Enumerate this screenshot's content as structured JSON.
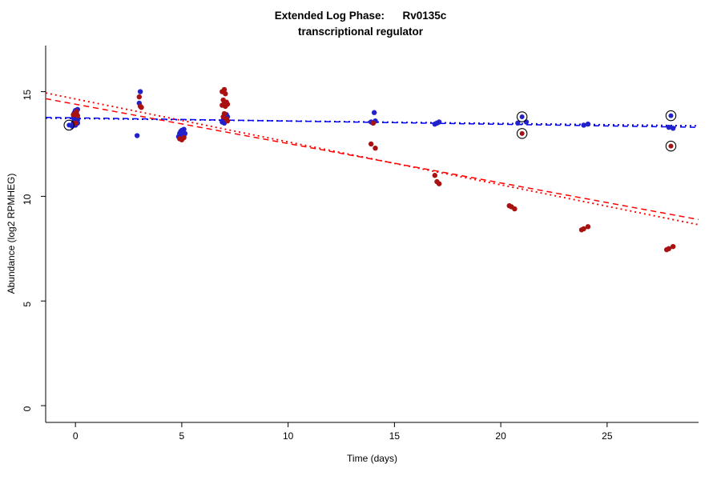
{
  "header": {
    "line1": "Extended Log Phase:      Rv0135c",
    "line2": "transcriptional regulator"
  },
  "chart_data": {
    "type": "scatter",
    "title": "Extended Log Phase:      Rv0135c",
    "subtitle": "transcriptional regulator",
    "xlabel": "Time (days)",
    "ylabel": "Abundance (log2 RPMHEG)",
    "xlim": [
      -1.4,
      29.3
    ],
    "ylim": [
      -0.8,
      17.2
    ],
    "xticks": [
      0,
      5,
      10,
      15,
      20,
      25
    ],
    "yticks": [
      0,
      5,
      10,
      15
    ],
    "grid": false,
    "legend": "none",
    "series": [
      {
        "name": "blue-series",
        "color": "#2222cc",
        "points": [
          [
            -0.15,
            13.35
          ],
          [
            -0.1,
            13.5
          ],
          [
            -0.1,
            13.75
          ],
          [
            -0.05,
            13.6
          ],
          [
            -0.05,
            14.0
          ],
          [
            0,
            13.4
          ],
          [
            0,
            13.55
          ],
          [
            0,
            13.7
          ],
          [
            0,
            13.9
          ],
          [
            0,
            14.1
          ],
          [
            0.05,
            13.8
          ],
          [
            0.05,
            13.95
          ],
          [
            0.1,
            13.5
          ],
          [
            0.1,
            13.65
          ],
          [
            0.1,
            14.15
          ],
          [
            2.9,
            12.9
          ],
          [
            3.0,
            14.45
          ],
          [
            3.05,
            15.0
          ],
          [
            4.85,
            12.85
          ],
          [
            4.9,
            13.0
          ],
          [
            4.95,
            13.1
          ],
          [
            4.95,
            12.9
          ],
          [
            5.0,
            12.95
          ],
          [
            5.0,
            13.15
          ],
          [
            5.05,
            13.05
          ],
          [
            5.1,
            12.9
          ],
          [
            5.1,
            13.2
          ],
          [
            5.15,
            13.0
          ],
          [
            6.9,
            13.55
          ],
          [
            6.95,
            13.65
          ],
          [
            7.0,
            13.5
          ],
          [
            7.0,
            13.75
          ],
          [
            7.05,
            13.6
          ],
          [
            7.05,
            13.85
          ],
          [
            7.1,
            13.7
          ],
          [
            7.1,
            13.9
          ],
          [
            7.15,
            13.8
          ],
          [
            13.9,
            13.55
          ],
          [
            14.0,
            13.5
          ],
          [
            14.05,
            14.0
          ],
          [
            14.1,
            13.6
          ],
          [
            16.9,
            13.45
          ],
          [
            17.0,
            13.5
          ],
          [
            17.1,
            13.55
          ],
          [
            20.8,
            13.5
          ],
          [
            21.2,
            13.55
          ],
          [
            23.9,
            13.4
          ],
          [
            24.1,
            13.45
          ],
          [
            27.9,
            13.3
          ],
          [
            28.1,
            13.25
          ]
        ]
      },
      {
        "name": "red-series",
        "color": "#aa1111",
        "points": [
          [
            -0.1,
            13.9
          ],
          [
            0,
            13.95
          ],
          [
            0.05,
            14.05
          ],
          [
            0.1,
            13.85
          ],
          [
            0,
            13.5
          ],
          [
            3.0,
            14.75
          ],
          [
            3.05,
            14.3
          ],
          [
            3.1,
            14.25
          ],
          [
            4.9,
            12.75
          ],
          [
            5.0,
            12.7
          ],
          [
            5.1,
            12.8
          ],
          [
            6.9,
            15.0
          ],
          [
            6.9,
            14.35
          ],
          [
            6.95,
            14.6
          ],
          [
            6.95,
            13.8
          ],
          [
            7.0,
            15.1
          ],
          [
            7.0,
            14.45
          ],
          [
            7.0,
            13.95
          ],
          [
            7.05,
            14.9
          ],
          [
            7.05,
            14.3
          ],
          [
            7.1,
            14.5
          ],
          [
            7.1,
            13.7
          ],
          [
            7.15,
            14.4
          ],
          [
            7.15,
            13.6
          ],
          [
            13.9,
            12.5
          ],
          [
            14.0,
            13.5
          ],
          [
            14.1,
            12.3
          ],
          [
            16.9,
            11.0
          ],
          [
            17.0,
            10.7
          ],
          [
            17.1,
            10.6
          ],
          [
            20.4,
            9.55
          ],
          [
            20.5,
            9.5
          ],
          [
            20.65,
            9.4
          ],
          [
            23.8,
            8.4
          ],
          [
            23.9,
            8.45
          ],
          [
            24.1,
            8.55
          ],
          [
            27.8,
            7.45
          ],
          [
            27.9,
            7.5
          ],
          [
            28.1,
            7.6
          ]
        ]
      }
    ],
    "trend_lines": [
      {
        "name": "blue-dashed-fit",
        "color": "#0000ff",
        "style": "dashed",
        "intercept": 13.75,
        "slope": -0.0155
      },
      {
        "name": "blue-dotted-fit",
        "color": "#0000ff",
        "style": "dotted",
        "intercept": 13.72,
        "slope": -0.012
      },
      {
        "name": "red-dashed-fit",
        "color": "#ff0000",
        "style": "dashed",
        "intercept": 14.4,
        "slope": -0.188
      },
      {
        "name": "red-dotted-fit",
        "color": "#ff0000",
        "style": "dotted",
        "intercept": 14.65,
        "slope": -0.205
      }
    ],
    "flagged_points": [
      {
        "x": -0.3,
        "y": 13.4,
        "color": "#2222cc"
      },
      {
        "x": 21.0,
        "y": 13.8,
        "color": "#2222cc"
      },
      {
        "x": 21.0,
        "y": 13.0,
        "color": "#aa1111"
      },
      {
        "x": 28.0,
        "y": 13.85,
        "color": "#2222cc"
      },
      {
        "x": 28.0,
        "y": 12.4,
        "color": "#aa1111"
      }
    ],
    "axis_color": "#000000",
    "point_radius": 3.2
  }
}
